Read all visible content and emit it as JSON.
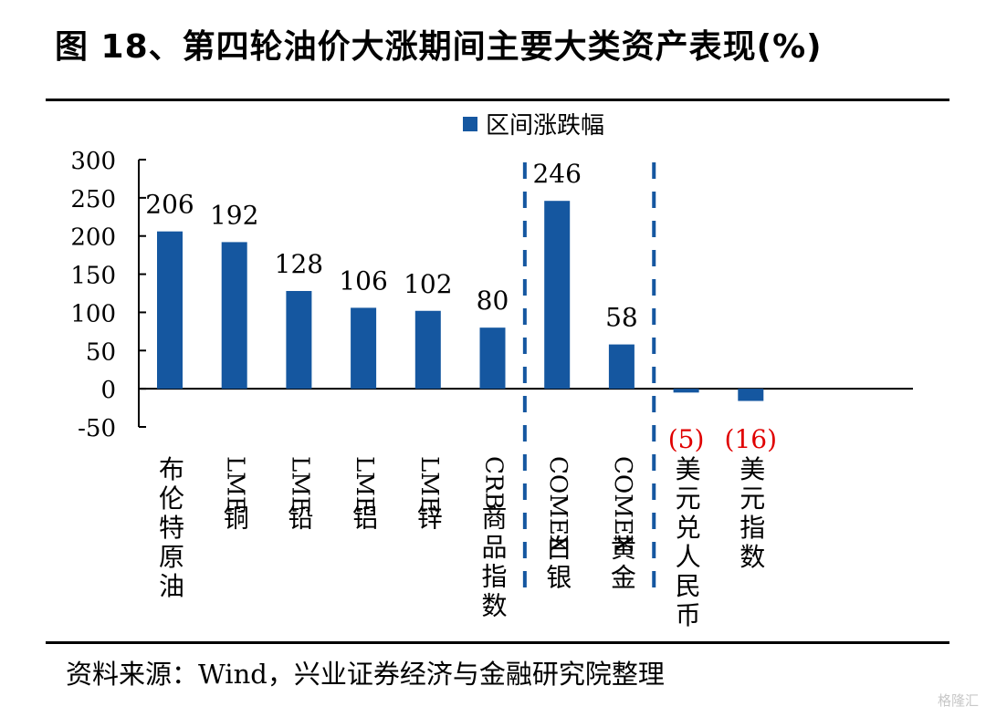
{
  "figure": {
    "title": "图 18、第四轮油价大涨期间主要大类资产表现(%)",
    "source": "资料来源：Wind，兴业证券经济与金融研究院整理",
    "watermark": "格隆汇"
  },
  "colors": {
    "bar": "#1557A0",
    "negative_label": "#E00000",
    "divider": "#1557A0",
    "axis": "#000000"
  },
  "chart_data": {
    "type": "bar",
    "title": "图 18、第四轮油价大涨期间主要大类资产表现(%)",
    "xlabel": "",
    "ylabel": "",
    "ylim": [
      -50,
      300
    ],
    "yticks": [
      300,
      250,
      200,
      150,
      100,
      50,
      0,
      -50
    ],
    "legend": {
      "position": "top",
      "entries": [
        "区间涨跌幅"
      ]
    },
    "grid": false,
    "categories": [
      "布伦特原油",
      "LME铜",
      "LME铅",
      "LME铝",
      "LME锌",
      "CRB商品指数",
      "COMEX白银",
      "COMEX黄金",
      "美元兑人民币",
      "美元指数"
    ],
    "series": [
      {
        "name": "区间涨跌幅",
        "values": [
          206,
          192,
          128,
          106,
          102,
          80,
          246,
          58,
          -5,
          -16
        ]
      }
    ],
    "data_labels": [
      "206",
      "192",
      "128",
      "106",
      "102",
      "80",
      "246",
      "58",
      "(5)",
      "(16)"
    ],
    "group_dividers_after_index": [
      5,
      7
    ]
  }
}
